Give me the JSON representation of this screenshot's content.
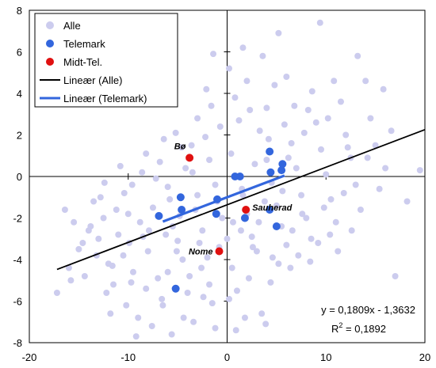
{
  "chart_data": {
    "type": "scatter",
    "xlim": [
      -20,
      20
    ],
    "ylim": [
      -8,
      8
    ],
    "x_ticks": [
      -20,
      -10,
      0,
      10,
      20
    ],
    "y_ticks": [
      8,
      6,
      4,
      2,
      0,
      -2,
      -4,
      -6,
      -8
    ],
    "legend_position": "top-left",
    "colors": {
      "alle": "#ccccee",
      "telemark": "#3366dd",
      "midt_tel": "#e01010",
      "trend_alle": "#000000",
      "trend_telemark": "#3366dd"
    },
    "series": [
      {
        "name": "Alle",
        "points": [
          [
            -17.2,
            -5.6
          ],
          [
            -16,
            -4.4
          ],
          [
            -15.5,
            -2.2
          ],
          [
            -15,
            -3.5
          ],
          [
            -14,
            -2.6
          ],
          [
            -13.5,
            -1.2
          ],
          [
            -13,
            -3.0
          ],
          [
            -12.5,
            -2.0
          ],
          [
            -12,
            -4.2
          ],
          [
            -11.5,
            -5.2
          ],
          [
            -11,
            -2.8
          ],
          [
            -10.5,
            -3.8
          ],
          [
            -10,
            -1.8
          ],
          [
            -9.5,
            -4.6
          ],
          [
            -9,
            -6.8
          ],
          [
            -8.5,
            -2.9
          ],
          [
            -8,
            -3.6
          ],
          [
            -7.5,
            -1.5
          ],
          [
            -7,
            -4.9
          ],
          [
            -6.5,
            -6.2
          ],
          [
            -6,
            -0.5
          ],
          [
            -5.5,
            -2.4
          ],
          [
            -5,
            -3.1
          ],
          [
            -4.5,
            -4.0
          ],
          [
            -4,
            -5.6
          ],
          [
            -3.5,
            0.2
          ],
          [
            -3,
            -0.9
          ],
          [
            -2.5,
            -2.6
          ],
          [
            -2,
            -3.9
          ],
          [
            -1.5,
            -6.1
          ],
          [
            -1,
            -1.2
          ],
          [
            -0.5,
            -2.0
          ],
          [
            0,
            -3.0
          ],
          [
            0.5,
            -4.4
          ],
          [
            1,
            -5.5
          ],
          [
            1.5,
            -0.6
          ],
          [
            2,
            -1.8
          ],
          [
            2.5,
            -2.9
          ],
          [
            3,
            -3.6
          ],
          [
            3.5,
            -6.6
          ],
          [
            4,
            0.8
          ],
          [
            4.5,
            -0.3
          ],
          [
            5,
            -1.4
          ],
          [
            5.5,
            -2.4
          ],
          [
            6,
            -3.3
          ],
          [
            6.5,
            1.6
          ],
          [
            7,
            0.4
          ],
          [
            7.5,
            -0.9
          ],
          [
            8,
            -2.0
          ],
          [
            8.5,
            -3.0
          ],
          [
            9,
            2.6
          ],
          [
            9.5,
            1.3
          ],
          [
            10,
            0.1
          ],
          [
            10.5,
            -1.1
          ],
          [
            11,
            -2.2
          ],
          [
            11.5,
            3.6
          ],
          [
            12,
            2.0
          ],
          [
            12.5,
            0.9
          ],
          [
            13,
            -0.4
          ],
          [
            13.5,
            -1.6
          ],
          [
            14,
            4.6
          ],
          [
            14.5,
            2.8
          ],
          [
            15,
            1.5
          ],
          [
            16,
            0.4
          ],
          [
            17,
            -4.8
          ],
          [
            19.5,
            0.3
          ],
          [
            15.8,
            4.2
          ],
          [
            13.2,
            5.8
          ],
          [
            9.4,
            7.4
          ],
          [
            5.2,
            6.9
          ],
          [
            3.6,
            5.8
          ],
          [
            1.6,
            6.2
          ],
          [
            -1.4,
            5.9
          ],
          [
            -2.1,
            4.2
          ],
          [
            0.8,
            3.8
          ],
          [
            2.3,
            3.2
          ],
          [
            4.8,
            4.4
          ],
          [
            6.8,
            3.4
          ],
          [
            8.6,
            4.1
          ],
          [
            10.8,
            4.6
          ],
          [
            -5.2,
            2.1
          ],
          [
            -3.6,
            1.5
          ],
          [
            -2.2,
            1.9
          ],
          [
            -0.7,
            2.4
          ],
          [
            1.2,
            2.7
          ],
          [
            3.3,
            2.2
          ],
          [
            5.8,
            2.5
          ],
          [
            7.8,
            2.1
          ],
          [
            -8.2,
            1.1
          ],
          [
            -6.8,
            0.7
          ],
          [
            -4.2,
            0.4
          ],
          [
            -1.8,
            0.8
          ],
          [
            0.4,
            1.1
          ],
          [
            2.8,
            0.6
          ],
          [
            4.2,
            1.8
          ],
          [
            6.2,
            0.9
          ],
          [
            -10.8,
            0.5
          ],
          [
            -9.6,
            -0.4
          ],
          [
            -7.2,
            -0.1
          ],
          [
            -5.8,
            -1.1
          ],
          [
            -3.2,
            -1.6
          ],
          [
            -1.2,
            -0.4
          ],
          [
            1.6,
            -0.9
          ],
          [
            3.8,
            -1.2
          ],
          [
            5.6,
            -0.7
          ],
          [
            7.6,
            -1.8
          ],
          [
            9.8,
            -1.5
          ],
          [
            11.8,
            -0.8
          ],
          [
            -12.8,
            -1.0
          ],
          [
            -11.2,
            -1.6
          ],
          [
            -8.8,
            -2.2
          ],
          [
            -6.2,
            -2.8
          ],
          [
            -4.8,
            -1.9
          ],
          [
            -2.8,
            -3.2
          ],
          [
            -0.8,
            -3.4
          ],
          [
            1.4,
            -2.6
          ],
          [
            3.2,
            -2.2
          ],
          [
            4.6,
            -3.9
          ],
          [
            6.6,
            -2.6
          ],
          [
            8.4,
            -4.1
          ],
          [
            10.4,
            -2.8
          ],
          [
            12.6,
            -2.6
          ],
          [
            -14.4,
            -4.8
          ],
          [
            -12.2,
            -5.6
          ],
          [
            -10.2,
            -6.2
          ],
          [
            -8.2,
            -5.4
          ],
          [
            -6.0,
            -4.6
          ],
          [
            -3.8,
            -4.8
          ],
          [
            -1.8,
            -5.2
          ],
          [
            0.2,
            -5.9
          ],
          [
            2.2,
            -4.9
          ],
          [
            4.4,
            -5.1
          ],
          [
            6.4,
            -4.4
          ],
          [
            -7.6,
            -7.2
          ],
          [
            -5.6,
            -7.6
          ],
          [
            -3.4,
            -7.0
          ],
          [
            -1.2,
            -7.3
          ],
          [
            1.8,
            -6.8
          ],
          [
            -9.2,
            -7.7
          ],
          [
            -11.8,
            -6.6
          ],
          [
            -16.4,
            -1.6
          ],
          [
            -13.8,
            -2.4
          ],
          [
            -9.9,
            -3.2
          ],
          [
            -7.9,
            -2.6
          ],
          [
            -5.1,
            -3.6
          ],
          [
            -2.6,
            -4.4
          ],
          [
            0.6,
            -2.2
          ],
          [
            2.6,
            -3.4
          ],
          [
            5.2,
            -4.2
          ],
          [
            7.2,
            -3.8
          ],
          [
            9.2,
            -3.2
          ],
          [
            11.2,
            -3.6
          ],
          [
            -4.4,
            -6.8
          ],
          [
            -2.4,
            -5.8
          ],
          [
            0.9,
            -7.4
          ],
          [
            3.9,
            -7.1
          ],
          [
            -6.6,
            -5.9
          ],
          [
            -9.7,
            -5.1
          ],
          [
            -11.6,
            -4.3
          ],
          [
            -13.2,
            -3.8
          ],
          [
            15.4,
            -0.6
          ],
          [
            14.2,
            0.9
          ],
          [
            12.2,
            1.4
          ],
          [
            10.2,
            2.8
          ],
          [
            8.2,
            3.2
          ],
          [
            6.0,
            4.8
          ],
          [
            4.0,
            3.3
          ],
          [
            2.0,
            4.6
          ],
          [
            0.2,
            5.2
          ],
          [
            -1.6,
            3.4
          ],
          [
            -3.0,
            2.8
          ],
          [
            -4.6,
            1.4
          ],
          [
            -6.4,
            1.8
          ],
          [
            -8.6,
            0.2
          ],
          [
            -10.4,
            -0.8
          ],
          [
            -12.4,
            -0.3
          ],
          [
            -14.6,
            -3.2
          ],
          [
            -15.8,
            -5.0
          ],
          [
            18.2,
            -1.2
          ],
          [
            16.6,
            2.2
          ]
        ]
      },
      {
        "name": "Telemark",
        "points": [
          [
            -6.9,
            -1.9
          ],
          [
            -4.7,
            -1.0
          ],
          [
            -4.6,
            -1.6
          ],
          [
            -1.0,
            -1.1
          ],
          [
            -1.1,
            -1.8
          ],
          [
            0.8,
            0.0
          ],
          [
            1.3,
            0.0
          ],
          [
            4.3,
            1.2
          ],
          [
            4.3,
            -1.6
          ],
          [
            4.4,
            0.2
          ],
          [
            5.5,
            0.3
          ],
          [
            5.6,
            0.6
          ],
          [
            5.0,
            -2.4
          ],
          [
            -5.2,
            -5.4
          ],
          [
            1.8,
            -2.0
          ]
        ]
      },
      {
        "name": "Midt-Tel.",
        "points": [
          [
            -3.8,
            0.9
          ],
          [
            1.9,
            -1.6
          ],
          [
            -0.8,
            -3.6
          ]
        ]
      }
    ],
    "point_labels": [
      {
        "text": "Bø",
        "x": -3.8,
        "y": 0.9
      },
      {
        "text": "Sauherad",
        "x": 1.9,
        "y": -1.6
      },
      {
        "text": "Nome",
        "x": -0.8,
        "y": -3.6
      }
    ],
    "trendlines": [
      {
        "name": "Lineær (Alle)",
        "slope": 0.1809,
        "intercept": -1.3632,
        "x_range": [
          -17.2,
          20
        ]
      },
      {
        "name": "Lineær (Telemark)",
        "slope": 0.18,
        "intercept": -1.0,
        "x_range": [
          -6.5,
          5.8
        ]
      }
    ],
    "equation": {
      "line1": "y = 0,1809x - 1,3632",
      "r2_prefix": "R",
      "r2_sup": "2",
      "r2_suffix": " = 0,1892"
    }
  }
}
